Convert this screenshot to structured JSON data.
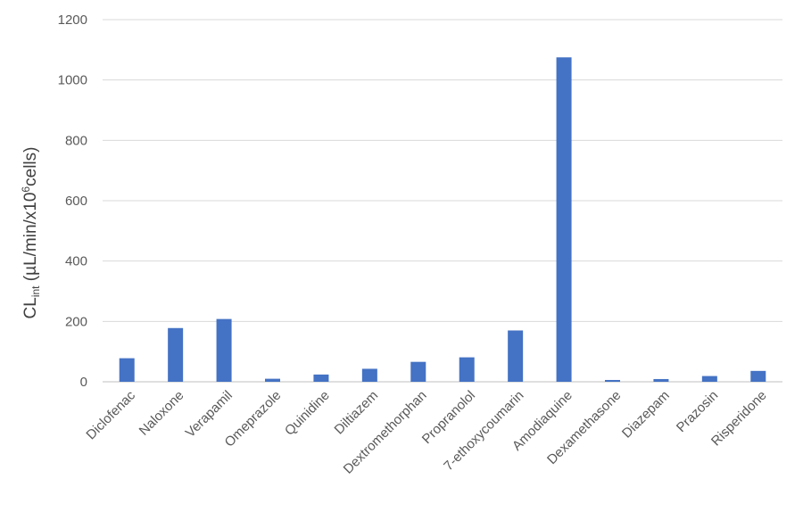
{
  "chart_data": {
    "type": "bar",
    "categories": [
      "Diclofenac",
      "Naloxone",
      "Verapamil",
      "Omeprazole",
      "Quinidine",
      "Diltiazem",
      "Dextromethorphan",
      "Propranolol",
      "7-ethoxycoumarin",
      "Amodiaquine",
      "Dexamethasone",
      "Diazepam",
      "Prazosin",
      "Risperidone"
    ],
    "values": [
      78,
      178,
      208,
      10,
      24,
      43,
      66,
      81,
      170,
      1075,
      6,
      9,
      19,
      36
    ],
    "title": "",
    "xlabel": "",
    "ylabel": {
      "main": "CL",
      "subscript": "int",
      "after_sub": " (µL/min/x10",
      "superscript": "6",
      "tail": "cells)"
    },
    "ylim": [
      0,
      1200
    ],
    "yticks": [
      "0",
      "200",
      "400",
      "600",
      "800",
      "1000",
      "1200"
    ],
    "grid": true,
    "legend": "none",
    "bar_color": "#4472c4"
  }
}
